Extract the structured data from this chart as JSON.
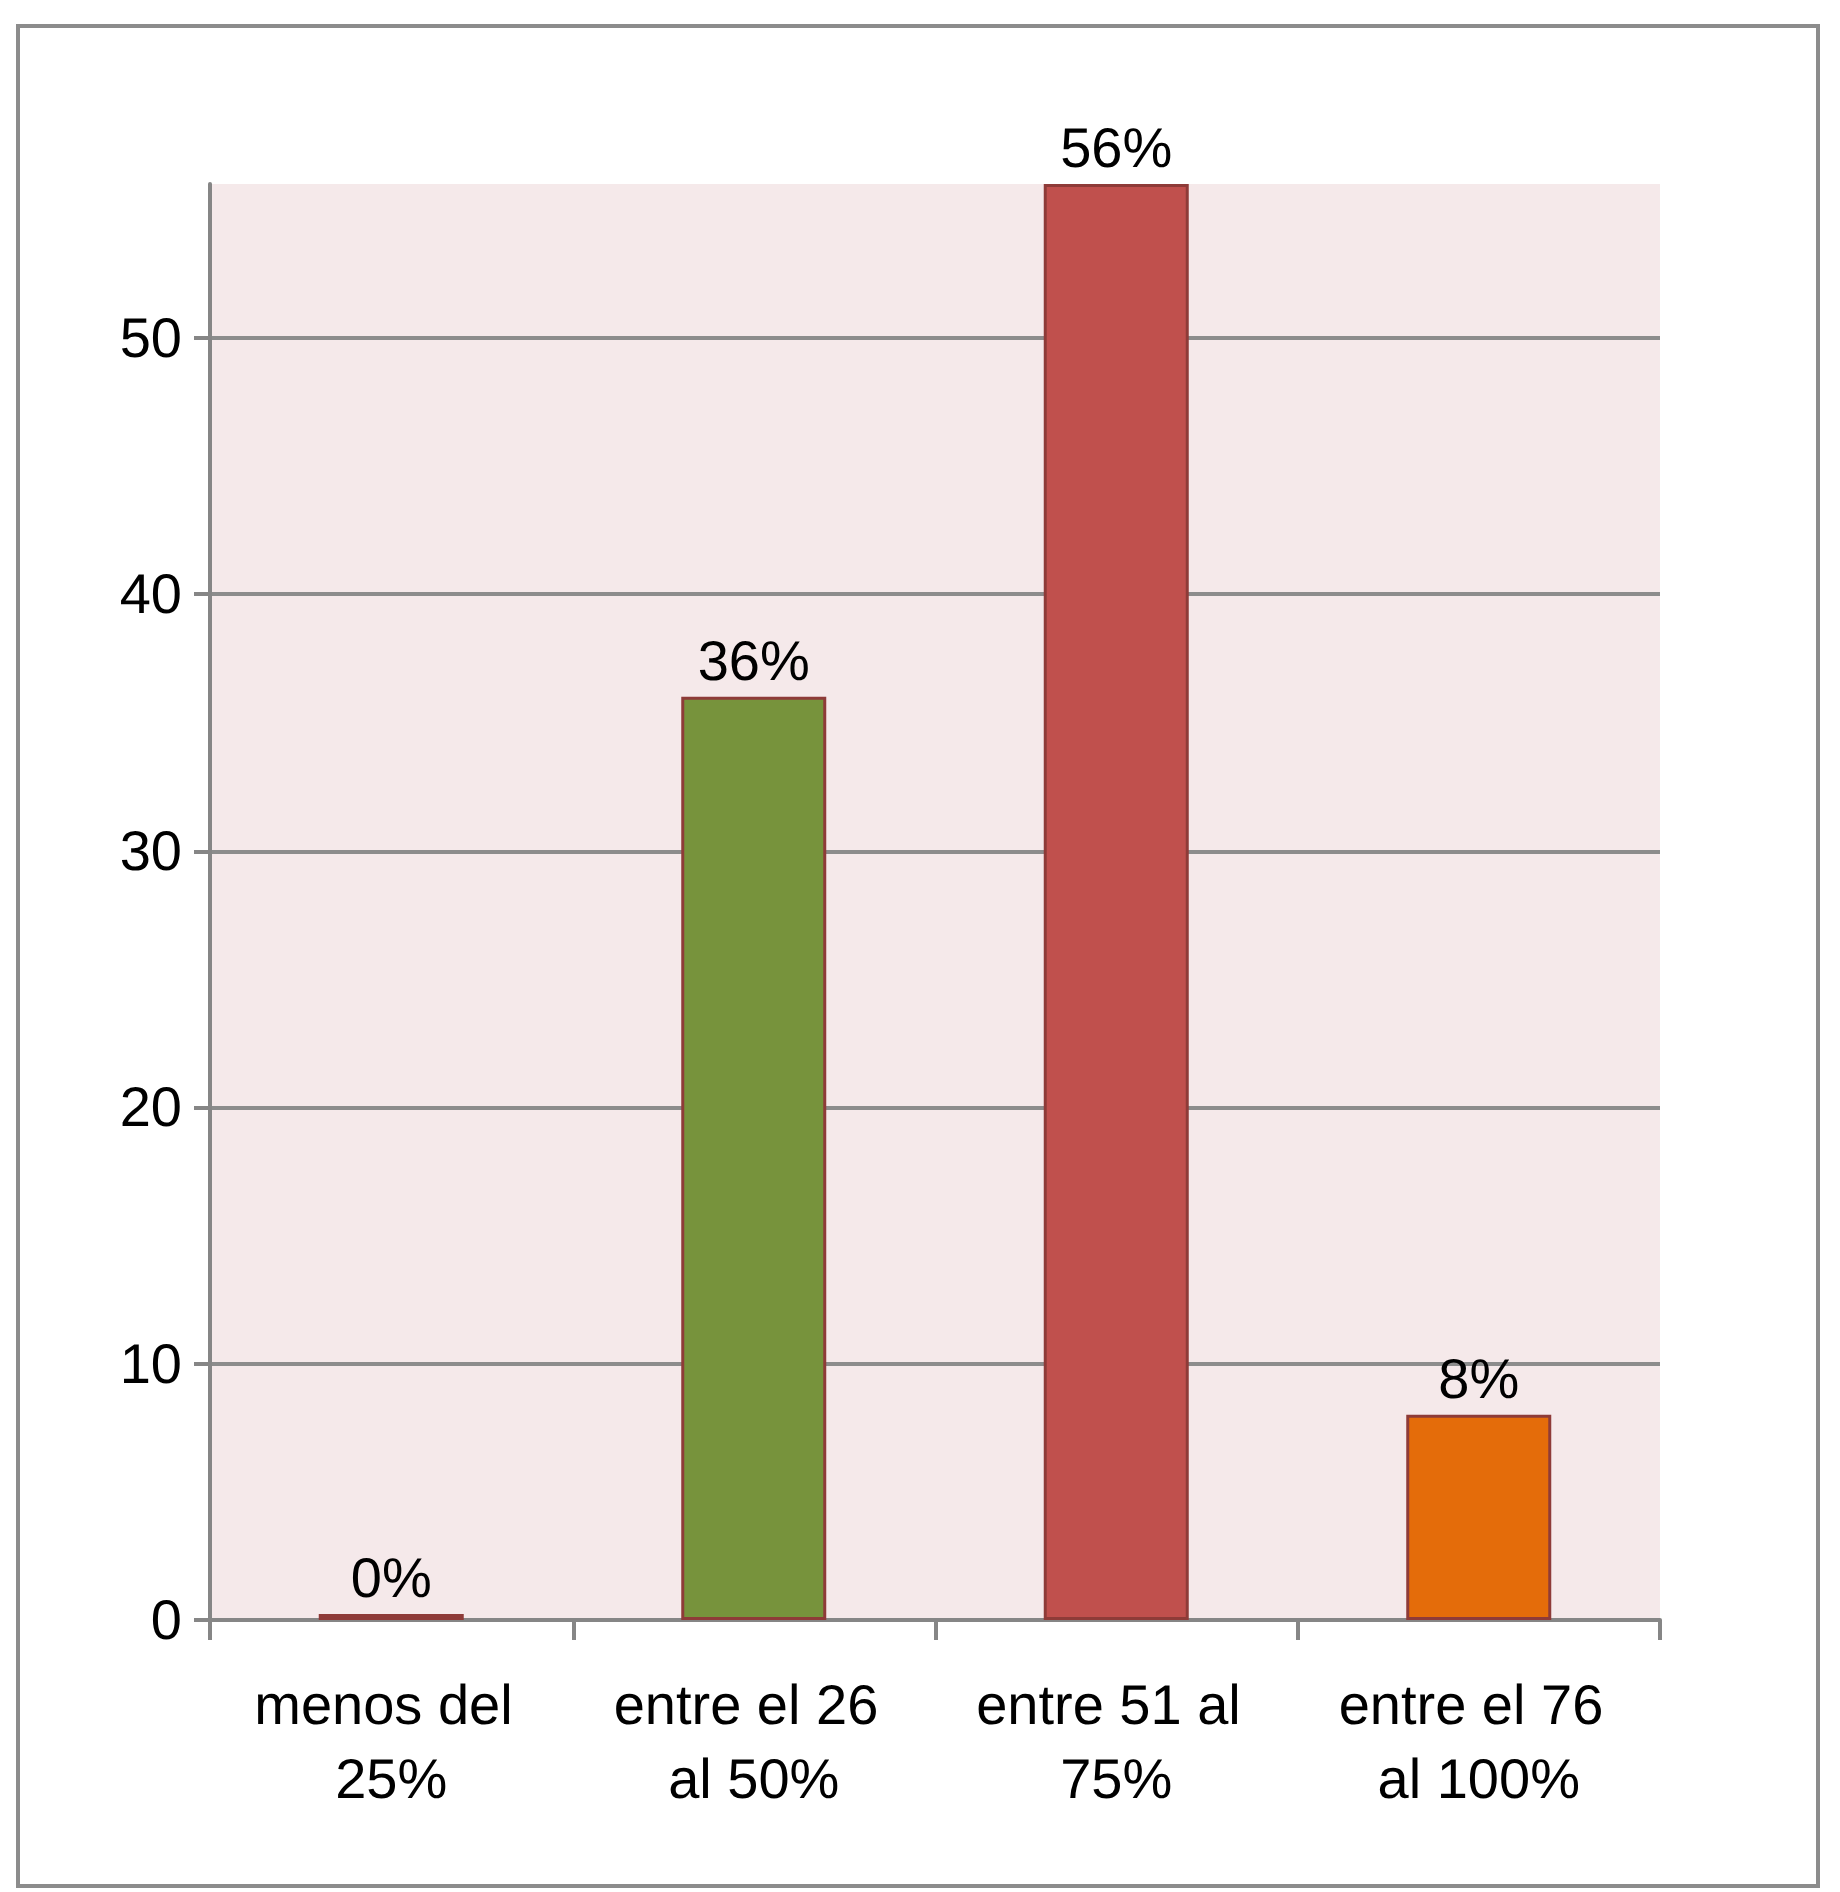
{
  "chart_data": {
    "type": "bar",
    "categories": [
      "menos del 25%",
      "entre el 26 al 50%",
      "entre 51 al 75%",
      "entre el 76 al 100%"
    ],
    "values": [
      0,
      36,
      56,
      8
    ],
    "colors": [
      "#0f87bc",
      "#77933c",
      "#c0504d",
      "#e46c0a"
    ],
    "value_labels": [
      "0%",
      "36%",
      "56%",
      "8%"
    ],
    "ylim": [
      0,
      56
    ],
    "yticks": [
      0,
      10,
      20,
      30,
      40,
      50
    ],
    "grid": "y"
  }
}
